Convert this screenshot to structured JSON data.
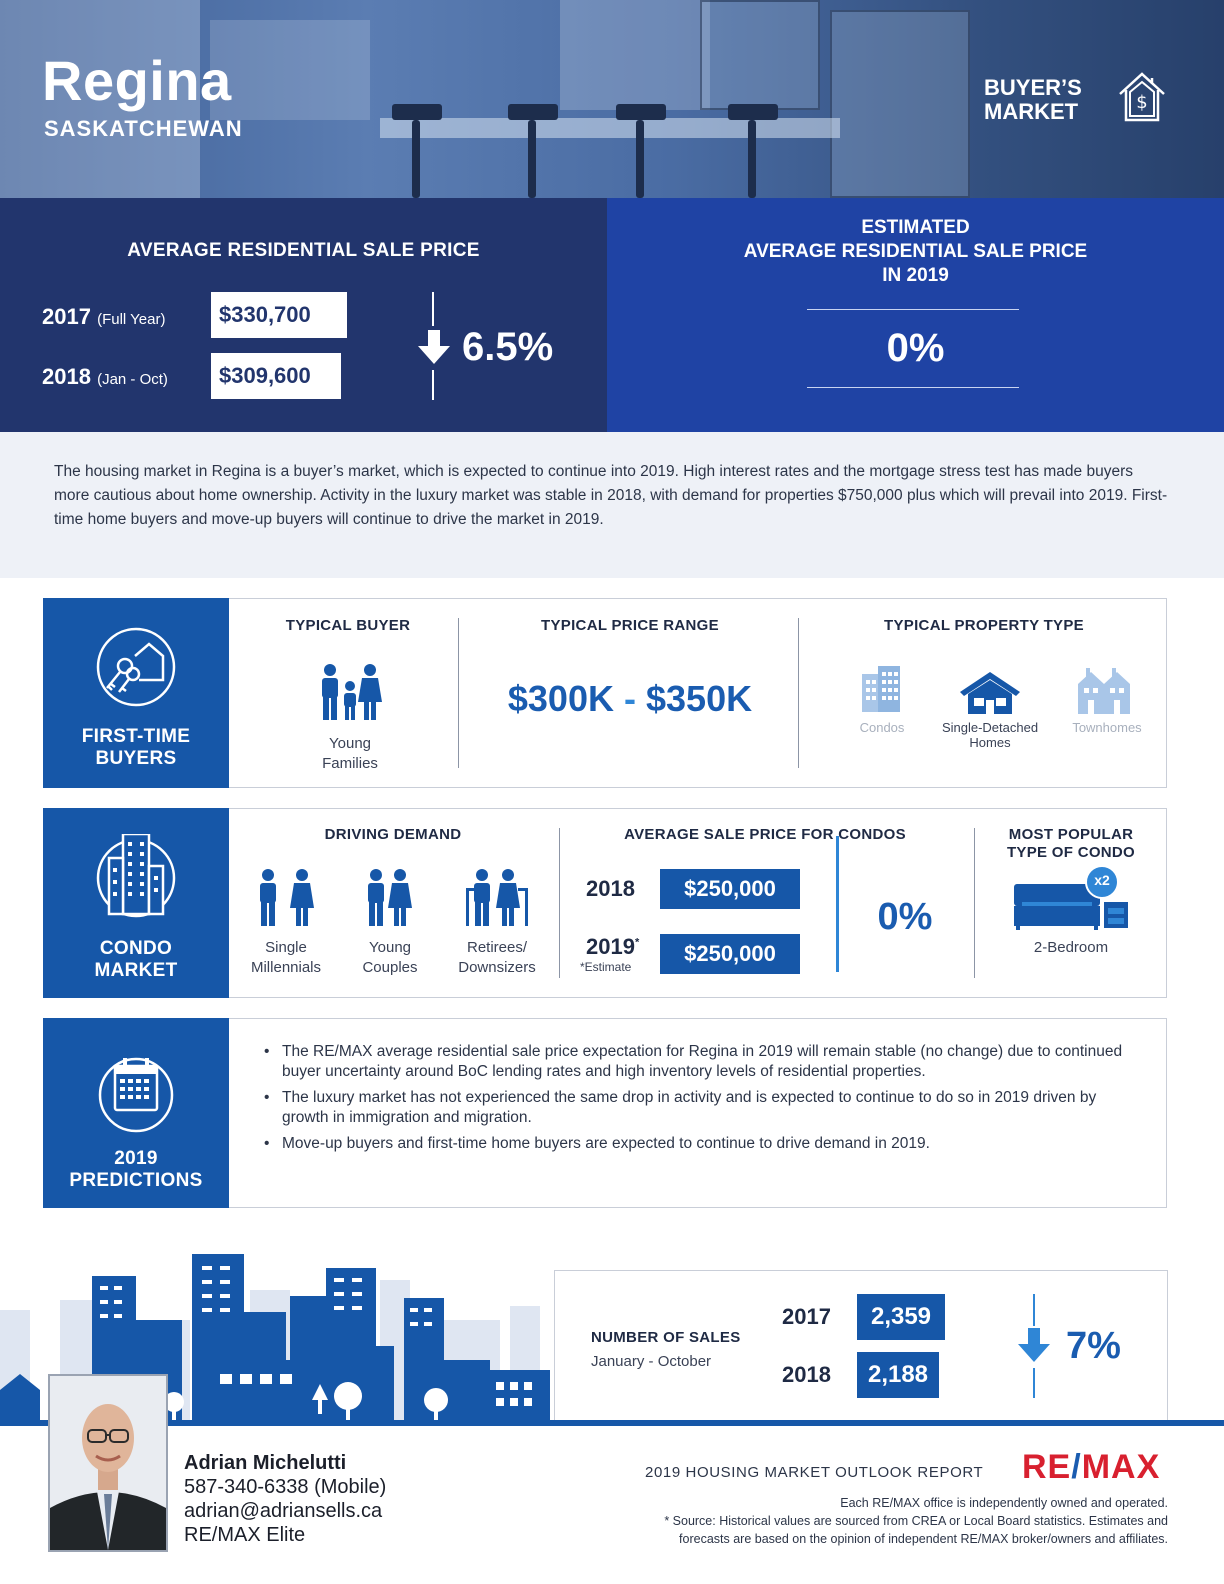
{
  "hero": {
    "city": "Regina",
    "province": "SASKATCHEWAN",
    "market_tag_line1": "BUYER’S",
    "market_tag_line2": "MARKET"
  },
  "avg_price": {
    "title": "AVERAGE RESIDENTIAL SALE PRICE",
    "rows": [
      {
        "year": "2017",
        "period": "(Full Year)",
        "price": "$330,700"
      },
      {
        "year": "2018",
        "period": "(Jan - Oct)",
        "price": "$309,600"
      }
    ],
    "change": "6.5%",
    "change_direction": "down"
  },
  "estimate": {
    "title_line1": "ESTIMATED",
    "title_line2": "AVERAGE RESIDENTIAL SALE PRICE",
    "title_line3": "IN 2019",
    "value": "0%"
  },
  "summary": "The housing market in Regina is a buyer’s market, which is expected to continue into 2019. High interest rates and the mortgage stress test has made buyers more cautious about home ownership. Activity in the luxury market was stable in 2018, with demand for properties $750,000 plus which will prevail into 2019. First-time home buyers and move-up buyers will continue to drive the market in 2019.",
  "first_time": {
    "side_line1": "FIRST-TIME",
    "side_line2": "BUYERS",
    "typical_buyer_title": "TYPICAL BUYER",
    "typical_buyer_line1": "Young",
    "typical_buyer_line2": "Families",
    "price_range_title": "TYPICAL PRICE RANGE",
    "price_low": "$300K",
    "price_sep": "-",
    "price_high": "$350K",
    "property_type_title": "TYPICAL PROPERTY TYPE",
    "property_types": [
      {
        "label": "Condos",
        "highlight": false
      },
      {
        "label_line1": "Single-Detached",
        "label_line2": "Homes",
        "highlight": true
      },
      {
        "label": "Townhomes",
        "highlight": false
      }
    ]
  },
  "condo": {
    "side_line1": "CONDO",
    "side_line2": "MARKET",
    "demand_title": "DRIVING DEMAND",
    "demand": [
      {
        "line1": "Single",
        "line2": "Millennials"
      },
      {
        "line1": "Young",
        "line2": "Couples"
      },
      {
        "line1": "Retirees/",
        "line2": "Downsizers"
      }
    ],
    "avg_title": "AVERAGE SALE PRICE FOR CONDOS",
    "rows": [
      {
        "year": "2018",
        "price": "$250,000"
      },
      {
        "year": "2019",
        "mark": "*",
        "price": "$250,000"
      }
    ],
    "estimate_note": "*Estimate",
    "change": "0%",
    "popular_title_line1": "MOST POPULAR",
    "popular_title_line2": "TYPE OF CONDO",
    "popular_badge": "x2",
    "popular_type": "2-Bedroom"
  },
  "predictions": {
    "side_line1": "2019",
    "side_line2": "PREDICTIONS",
    "bullets": [
      "The RE/MAX average residential sale price expectation for Regina in 2019 will remain stable (no change) due to continued buyer uncertainty around BoC lending rates and high inventory levels of residential properties.",
      "The luxury market has not experienced the same drop in activity and is expected to continue to do so in 2019 driven by growth in immigration and migration.",
      "Move-up buyers and first-time home buyers are expected to continue to drive demand in 2019."
    ]
  },
  "sales": {
    "title": "NUMBER OF SALES",
    "period": "January - October",
    "rows": [
      {
        "year": "2017",
        "count": "2,359"
      },
      {
        "year": "2018",
        "count": "2,188"
      }
    ],
    "change": "7%",
    "change_direction": "down"
  },
  "agent": {
    "name": "Adrian Michelutti",
    "phone": "587-340-6338 (Mobile)",
    "email": "adrian@adriansells.ca",
    "office": "RE/MAX Elite"
  },
  "footer": {
    "report_title": "2019 HOUSING MARKET OUTLOOK REPORT",
    "brand_part1": "RE",
    "brand_slash": "/",
    "brand_part2": "MAX",
    "fine_line1": "Each RE/MAX office is independently owned and operated.",
    "fine_line2": "* Source: Historical values are sourced from CREA or Local Board statistics. Estimates and",
    "fine_line3": "forecasts are based on the opinion of independent RE/MAX broker/owners and affiliates."
  },
  "colors": {
    "navy": "#22356d",
    "royal": "#1f43a4",
    "brand_blue": "#1657a8",
    "accent_blue": "#2f86d6",
    "remax_red": "#d8202f"
  }
}
